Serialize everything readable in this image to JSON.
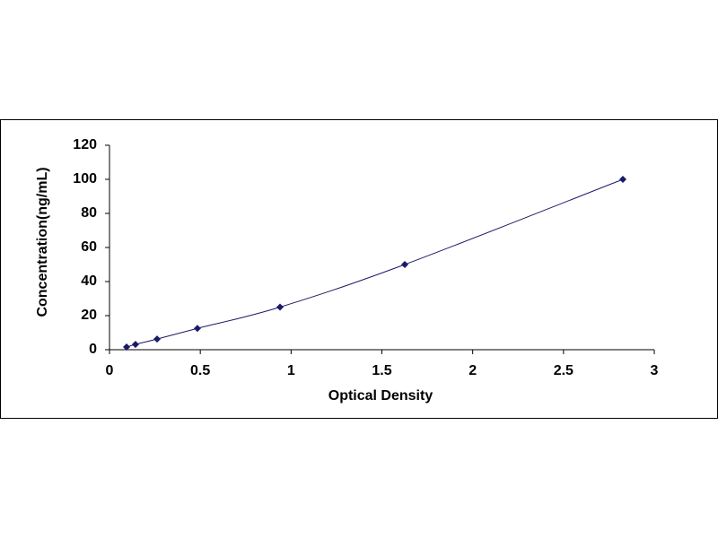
{
  "chart_data": {
    "type": "scatter",
    "x_label": "Optical Density",
    "y_label": "Concentration(ng/mL)",
    "x": [
      0.094,
      0.143,
      0.262,
      0.484,
      0.939,
      1.626,
      2.827
    ],
    "values": [
      1.56,
      3.12,
      6.25,
      12.5,
      25,
      50,
      100
    ],
    "color": "#1a1a66",
    "line_color": "#1a1a66",
    "smooth_line": true,
    "xlim": [
      0,
      3
    ],
    "xticks": [
      0,
      0.5,
      1,
      1.5,
      2,
      2.5,
      3
    ],
    "ylim": [
      0,
      120
    ],
    "yticks": [
      0,
      20,
      40,
      60,
      80,
      100,
      120
    ],
    "grid": false
  }
}
